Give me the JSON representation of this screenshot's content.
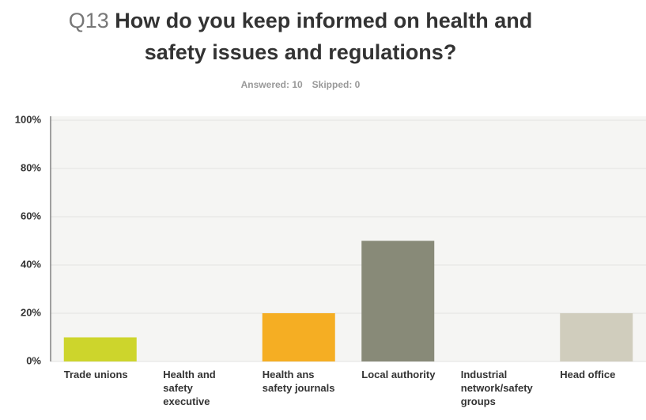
{
  "chart_data": {
    "type": "bar",
    "title_number": "Q13",
    "title": "How do you keep informed on health and safety issues and regulations?",
    "answered": "Answered: 10",
    "skipped": "Skipped: 0",
    "categories": [
      "Trade unions",
      "Health and safety executive",
      "Health ans safety journals",
      "Local authority",
      "Industrial network/safety groups",
      "Head office"
    ],
    "values": [
      10,
      0,
      20,
      50,
      0,
      20
    ],
    "colors": [
      "#cdd52c",
      "#5b7fa0",
      "#f5ae23",
      "#888a78",
      "#6b9e4a",
      "#d0cdbd"
    ],
    "ylim": [
      0,
      100
    ],
    "yticks": [
      {
        "value": 0,
        "label": "0%"
      },
      {
        "value": 20,
        "label": "20%"
      },
      {
        "value": 40,
        "label": "40%"
      },
      {
        "value": 60,
        "label": "60%"
      },
      {
        "value": 80,
        "label": "80%"
      },
      {
        "value": 100,
        "label": "100%"
      }
    ],
    "grid": true
  }
}
